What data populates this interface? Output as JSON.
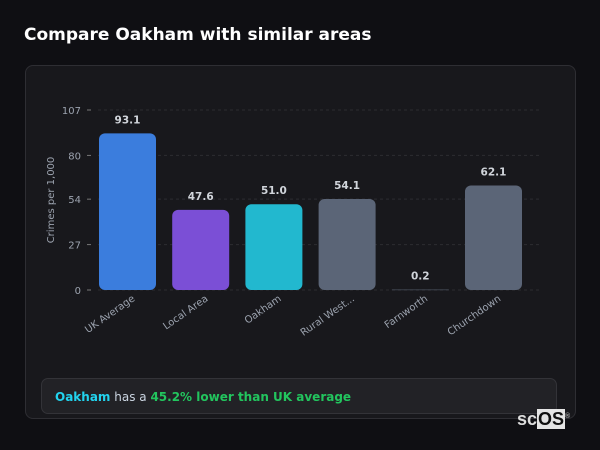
{
  "title": "Compare Oakham with similar areas",
  "chart_data": {
    "type": "bar",
    "categories": [
      "UK Average",
      "Local Area",
      "Oakham",
      "Rural West...",
      "Farnworth",
      "Churchdown"
    ],
    "values": [
      93.1,
      47.6,
      51.0,
      54.1,
      0.2,
      62.1
    ],
    "value_labels": [
      "93.1",
      "47.6",
      "51.0",
      "54.1",
      "0.2",
      "62.1"
    ],
    "colors": [
      "#3b7ddd",
      "#7b4fd6",
      "#22b8cf",
      "#5b6577",
      "#5b6577",
      "#5b6577"
    ],
    "ylabel": "Crimes per 1,000",
    "xlabel": "",
    "yticks": [
      0,
      27,
      54,
      80,
      107
    ],
    "ylim": [
      0,
      107
    ],
    "grid": true
  },
  "summary": {
    "area": "Oakham",
    "middle": " has a ",
    "comparison": "45.2% lower than UK average"
  },
  "logo": {
    "text_a": "sc",
    "text_b": "OS",
    "mark": "®"
  }
}
